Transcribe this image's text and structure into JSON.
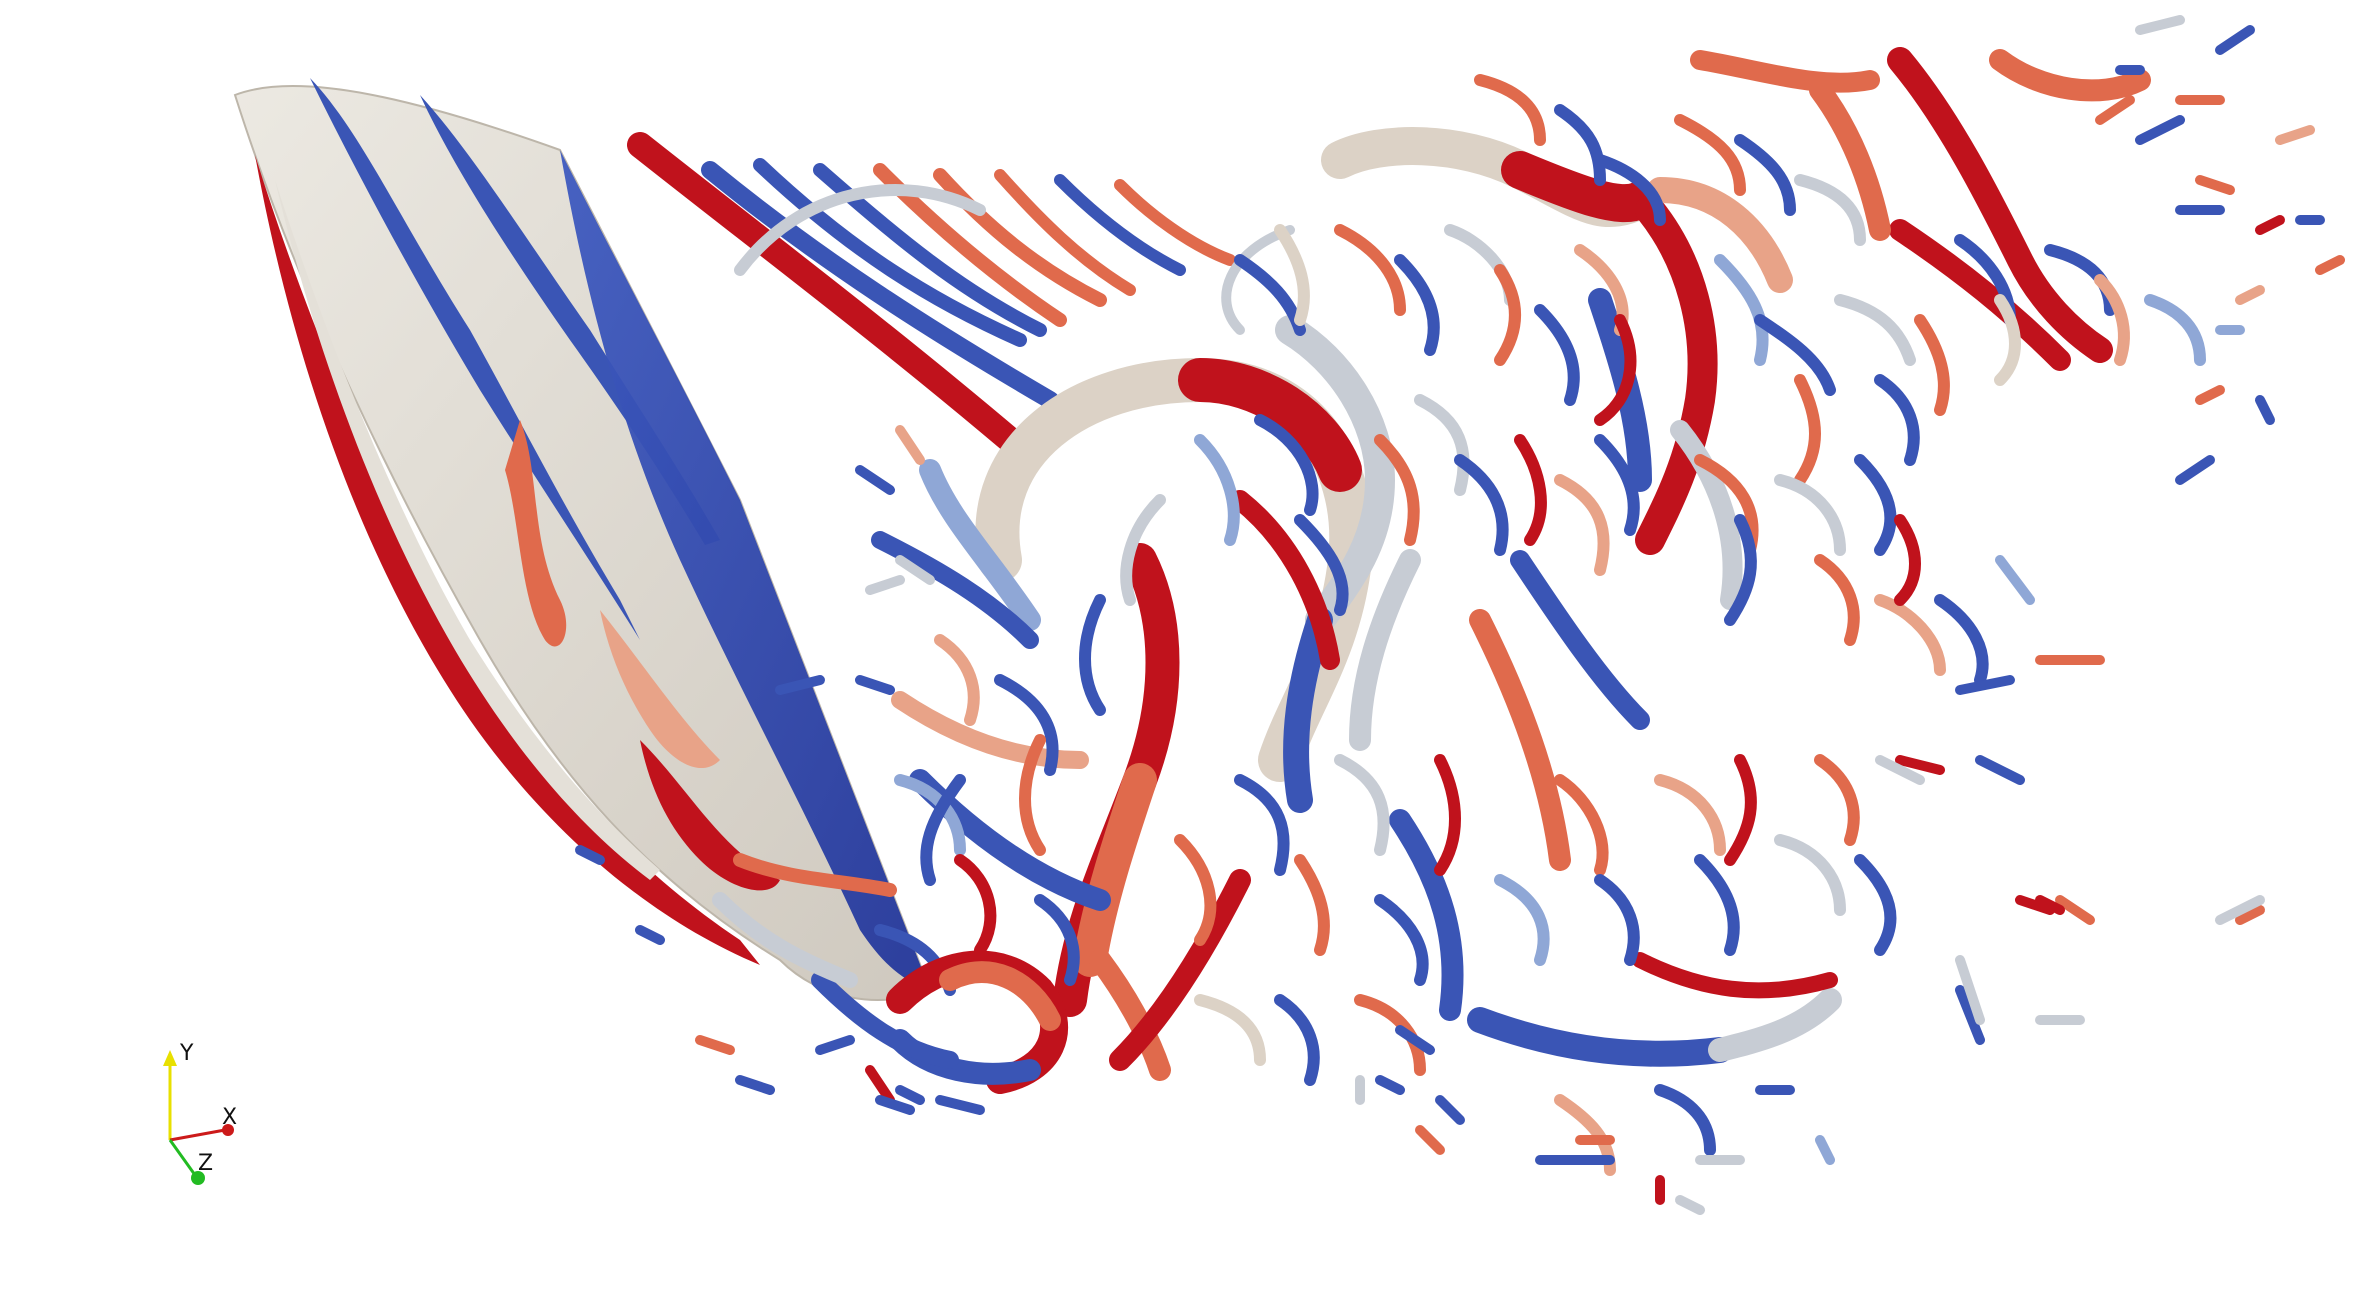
{
  "viewport": {
    "background": "#ffffff"
  },
  "colors": {
    "surface": "#e4e0d8",
    "red": "#c0121c",
    "red_light": "#e06a4c",
    "salmon": "#e8a388",
    "beige": "#dcd2c6",
    "grey": "#c7ccd4",
    "blue_light": "#8fa7d6",
    "blue": "#3a55b5",
    "blue_dark": "#2c3f9c"
  },
  "orientation_axes": {
    "x_label": "X",
    "y_label": "Y",
    "z_label": "Z",
    "x_color": "#cc1a1a",
    "y_color": "#e8e000",
    "z_color": "#22bb22"
  }
}
